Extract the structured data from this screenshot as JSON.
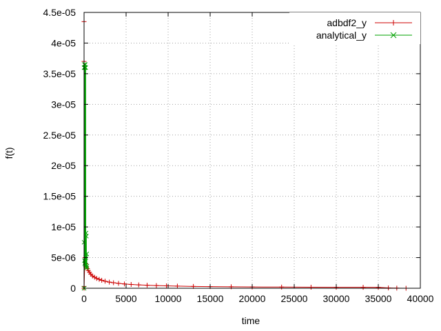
{
  "chart_data": {
    "type": "line",
    "title": "",
    "xlabel": "time",
    "ylabel": "f(t)",
    "xlim": [
      0,
      40000
    ],
    "ylim": [
      0,
      4.5e-05
    ],
    "grid": true,
    "legend_position": "top-right",
    "xticks": [
      {
        "value": 0,
        "label": "0"
      },
      {
        "value": 5000,
        "label": "5000"
      },
      {
        "value": 10000,
        "label": "10000"
      },
      {
        "value": 15000,
        "label": "15000"
      },
      {
        "value": 20000,
        "label": "20000"
      },
      {
        "value": 25000,
        "label": "25000"
      },
      {
        "value": 30000,
        "label": "30000"
      },
      {
        "value": 35000,
        "label": "35000"
      },
      {
        "value": 40000,
        "label": "40000"
      }
    ],
    "yticks": [
      {
        "value": 0,
        "label": "0"
      },
      {
        "value": 5e-06,
        "label": "5e-06"
      },
      {
        "value": 1e-05,
        "label": "1e-05"
      },
      {
        "value": 1.5e-05,
        "label": "1.5e-05"
      },
      {
        "value": 2e-05,
        "label": "2e-05"
      },
      {
        "value": 2.5e-05,
        "label": "2.5e-05"
      },
      {
        "value": 3e-05,
        "label": "3e-05"
      },
      {
        "value": 3.5e-05,
        "label": "3.5e-05"
      },
      {
        "value": 4e-05,
        "label": "4e-05"
      },
      {
        "value": 4.5e-05,
        "label": "4.5e-05"
      }
    ],
    "series": [
      {
        "name": "adbdf2_y",
        "color": "#cc0000",
        "marker": "plus",
        "points": [
          [
            0,
            4.35e-05
          ],
          [
            0,
            3.7e-05
          ],
          [
            0,
            3e-07
          ],
          [
            0,
            0
          ],
          [
            100,
            5e-06
          ],
          [
            200,
            4e-06
          ],
          [
            300,
            3.5e-06
          ],
          [
            400,
            3.2e-06
          ],
          [
            500,
            2.9e-06
          ],
          [
            650,
            2.6e-06
          ],
          [
            800,
            2.3e-06
          ],
          [
            1000,
            2e-06
          ],
          [
            1250,
            1.8e-06
          ],
          [
            1500,
            1.6e-06
          ],
          [
            1800,
            1.45e-06
          ],
          [
            2100,
            1.3e-06
          ],
          [
            2500,
            1.15e-06
          ],
          [
            3000,
            1e-06
          ],
          [
            3500,
            9e-07
          ],
          [
            4100,
            8e-07
          ],
          [
            4800,
            7e-07
          ],
          [
            5600,
            6.2e-07
          ],
          [
            6500,
            5.5e-07
          ],
          [
            7500,
            4.9e-07
          ],
          [
            8600,
            4.4e-07
          ],
          [
            9800,
            3.9e-07
          ],
          [
            11100,
            3.5e-07
          ],
          [
            13000,
            3e-07
          ],
          [
            15000,
            2.7e-07
          ],
          [
            17500,
            2.4e-07
          ],
          [
            20000,
            2.1e-07
          ],
          [
            23500,
            1.9e-07
          ],
          [
            27000,
            1.7e-07
          ],
          [
            30000,
            1.6e-07
          ],
          [
            33200,
            1.5e-07
          ],
          [
            35000,
            1.4e-07
          ],
          [
            36200,
            5e-08
          ],
          [
            37200,
            2e-08
          ],
          [
            38300,
            0
          ]
        ]
      },
      {
        "name": "analytical_y",
        "color": "#00a000",
        "marker": "cross",
        "points": [
          [
            0,
            0
          ],
          [
            0,
            3.6e-05
          ],
          [
            0,
            7.5e-06
          ],
          [
            30,
            3.65e-05
          ],
          [
            50,
            4.5e-06
          ],
          [
            70,
            3.6e-05
          ],
          [
            90,
            4e-06
          ],
          [
            110,
            3.6e-05
          ],
          [
            130,
            4.2e-06
          ],
          [
            150,
            3.65e-05
          ],
          [
            170,
            3.8e-06
          ],
          [
            190,
            3.6e-05
          ],
          [
            210,
            5e-06
          ],
          [
            230,
            9e-06
          ],
          [
            250,
            3.5e-06
          ],
          [
            270,
            8.5e-06
          ],
          [
            290,
            3.3e-06
          ],
          [
            310,
            5.6e-06
          ],
          [
            330,
            3.6e-06
          ]
        ]
      }
    ]
  }
}
